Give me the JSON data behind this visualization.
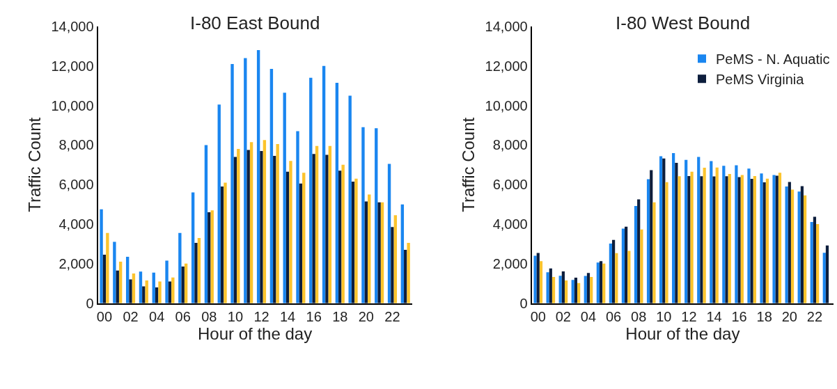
{
  "chart_data": [
    {
      "type": "bar",
      "title": "I-80 East Bound",
      "xlabel": "Hour of the day",
      "ylabel": "Traffic Count",
      "categories": [
        "00",
        null,
        "02",
        null,
        "04",
        null,
        "06",
        null,
        "08",
        null,
        "10",
        null,
        "12",
        null,
        "14",
        null,
        "16",
        null,
        "18",
        null,
        "20",
        null,
        "22",
        null
      ],
      "series": [
        {
          "color": "#1a86f0",
          "values": [
            4750,
            3100,
            2350,
            1600,
            1550,
            2150,
            3550,
            5600,
            8000,
            10050,
            12100,
            12400,
            12800,
            11850,
            10650,
            8700,
            11400,
            12000,
            11150,
            10500,
            8900,
            8850,
            7050,
            5000
          ]
        },
        {
          "color": "#0d1e3d",
          "values": [
            2450,
            1650,
            1200,
            850,
            800,
            1100,
            1850,
            3050,
            4600,
            5900,
            7400,
            7750,
            7700,
            7450,
            6650,
            6050,
            7550,
            7500,
            6700,
            6150,
            5150,
            5100,
            3850,
            2700
          ]
        },
        {
          "color": "#fcc42d",
          "values": [
            3550,
            2100,
            1500,
            1150,
            1100,
            1300,
            2000,
            3300,
            4700,
            6100,
            7800,
            8150,
            8250,
            8050,
            7200,
            6600,
            7950,
            7950,
            7000,
            6300,
            5500,
            5100,
            4450,
            3050
          ]
        }
      ],
      "ylim": [
        0,
        14000
      ],
      "yticks": [
        {
          "value": 0,
          "label": "0"
        },
        {
          "value": 2000,
          "label": "2,000"
        },
        {
          "value": 4000,
          "label": "4,000"
        },
        {
          "value": 6000,
          "label": "6,000"
        },
        {
          "value": 8000,
          "label": "8,000"
        },
        {
          "value": 10000,
          "label": "10,000"
        },
        {
          "value": 12000,
          "label": "12,000"
        },
        {
          "value": 14000,
          "label": "14,000"
        }
      ],
      "grid": false,
      "legend": false
    },
    {
      "type": "bar",
      "title": "I-80 West Bound",
      "xlabel": "Hour of the day",
      "ylabel": "Traffic Count",
      "categories": [
        "00",
        null,
        "02",
        null,
        "04",
        null,
        "06",
        null,
        "08",
        null,
        "10",
        null,
        "12",
        null,
        "14",
        null,
        "16",
        null,
        "18",
        null,
        "20",
        null,
        "22",
        null
      ],
      "series": [
        {
          "name": "PeMS - N. Aquatic",
          "color": "#1a86f0",
          "values": [
            2400,
            1560,
            1390,
            1180,
            1380,
            2060,
            3020,
            3770,
            4920,
            6270,
            7430,
            7590,
            7250,
            7400,
            7190,
            6950,
            6980,
            6810,
            6560,
            6480,
            5900,
            5650,
            4110,
            2550
          ]
        },
        {
          "name": "PeMS Virginia",
          "color": "#0d1e3d",
          "values": [
            2540,
            1760,
            1610,
            1290,
            1530,
            2130,
            3200,
            3870,
            5250,
            6730,
            7320,
            7100,
            6430,
            6420,
            6410,
            6420,
            6380,
            6290,
            6110,
            6450,
            6130,
            5920,
            4370,
            2920
          ]
        },
        {
          "color": "#fcc42d",
          "values": [
            2130,
            1330,
            1150,
            1020,
            1330,
            2000,
            2530,
            2650,
            3730,
            5100,
            6120,
            6420,
            6650,
            6850,
            6860,
            6540,
            6480,
            6430,
            6300,
            6600,
            5740,
            5450,
            4000,
            null
          ]
        }
      ],
      "ylim": [
        0,
        14000
      ],
      "yticks": [
        {
          "value": 0,
          "label": "0"
        },
        {
          "value": 2000,
          "label": "2,000"
        },
        {
          "value": 4000,
          "label": "4,000"
        },
        {
          "value": 6000,
          "label": "6,000"
        },
        {
          "value": 8000,
          "label": "8,000"
        },
        {
          "value": 10000,
          "label": "10,000"
        },
        {
          "value": 12000,
          "label": "12,000"
        },
        {
          "value": 14000,
          "label": "14,000"
        }
      ],
      "grid": false,
      "legend": "top right"
    }
  ]
}
